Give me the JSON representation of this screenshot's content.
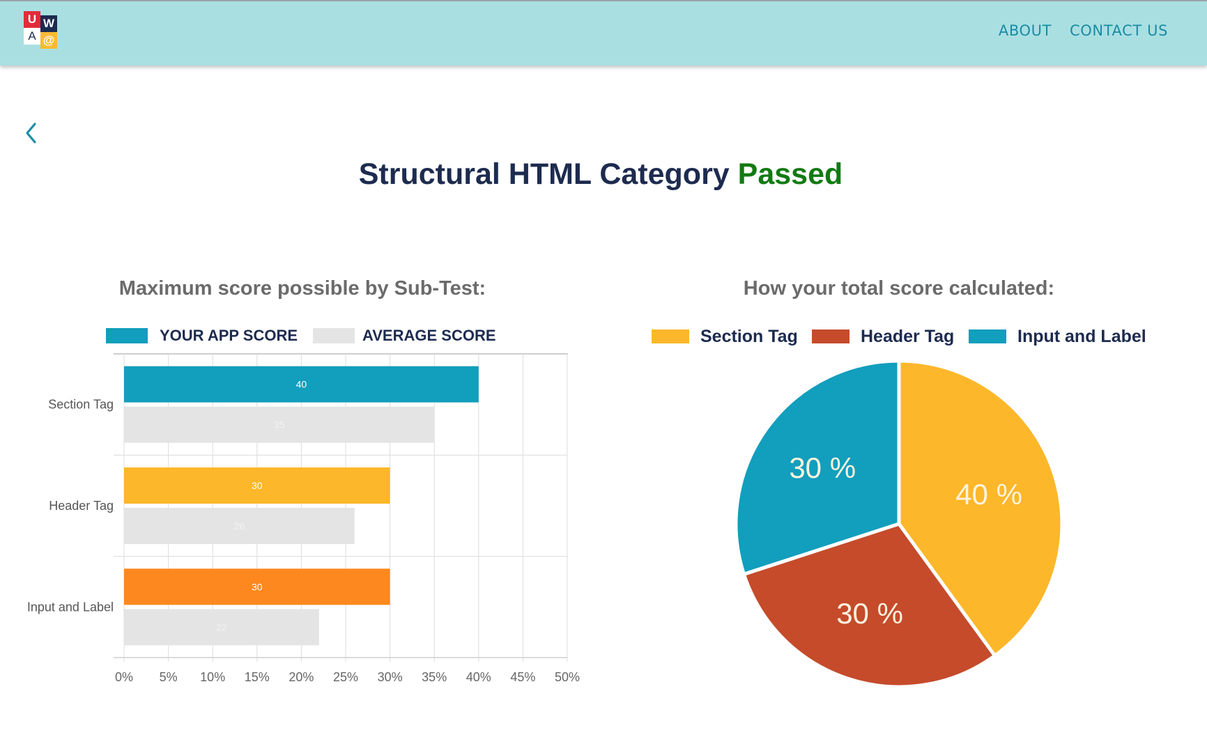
{
  "nav": {
    "logo_letters": {
      "u": "U",
      "w": "W",
      "a": "A",
      "at": "@"
    },
    "logo_colors": {
      "u": "#e32b3a",
      "w": "#1c2b4f",
      "a": "#ffffff",
      "at": "#f8bb32"
    },
    "links": [
      "ABOUT",
      "CONTACT US"
    ]
  },
  "back_icon": "chevron-left-icon",
  "page": {
    "title": "Structural HTML Category",
    "status": "Passed"
  },
  "chart_data": [
    {
      "type": "bar",
      "orientation": "horizontal",
      "title": "Maximum score possible by Sub-Test:",
      "categories": [
        "Section Tag",
        "Header Tag",
        "Input and Label"
      ],
      "series": [
        {
          "name": "YOUR APP SCORE",
          "values": [
            40,
            30,
            30
          ],
          "colors": [
            "#129ebd",
            "#fdb72a",
            "#fd881f"
          ]
        },
        {
          "name": "AVERAGE SCORE",
          "values": [
            35,
            26,
            22
          ],
          "colors": [
            "#e4e4e4",
            "#e4e4e4",
            "#e4e4e4"
          ]
        }
      ],
      "xlim": [
        0,
        50
      ],
      "xticks": [
        "0%",
        "5%",
        "10%",
        "15%",
        "20%",
        "25%",
        "30%",
        "35%",
        "40%",
        "45%",
        "50%"
      ],
      "grid": true,
      "legend": "top"
    },
    {
      "type": "pie",
      "title": "How your total score calculated:",
      "labels": [
        "Section Tag",
        "Header Tag",
        "Input and Label"
      ],
      "values": [
        40,
        30,
        30
      ],
      "slice_labels": [
        "40 %",
        "30 %",
        "30 %"
      ],
      "colors": [
        "#fdb72a",
        "#c54b2b",
        "#129ebd"
      ],
      "legend": "top"
    }
  ]
}
